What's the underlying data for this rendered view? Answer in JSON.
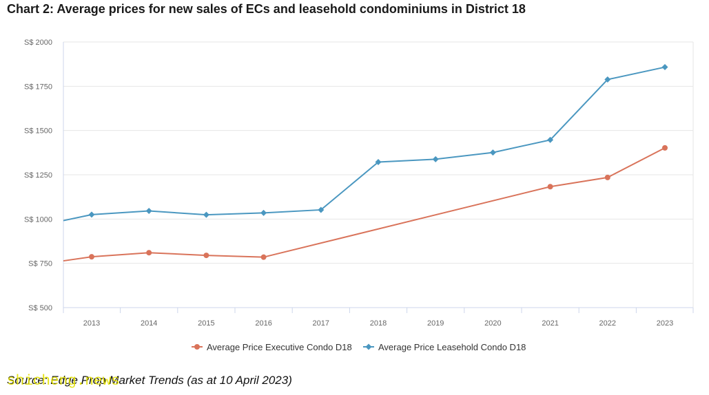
{
  "title": "Chart 2: Average prices for new sales of ECs and leasehold condominiums in District 18",
  "source": "Source: Edge Prop Market Trends (as at 10 April 2023)",
  "watermark": "shicheng.news",
  "chart_data": {
    "type": "line",
    "x": [
      "2013",
      "2014",
      "2015",
      "2016",
      "2017",
      "2018",
      "2019",
      "2020",
      "2021",
      "2022",
      "2023"
    ],
    "ylim": [
      500,
      2000
    ],
    "yticks": [
      500,
      750,
      1000,
      1250,
      1500,
      1750,
      2000
    ],
    "ytick_prefix": "S$ ",
    "grid": true,
    "legend_position": "bottom",
    "series": [
      {
        "name": "Average Price Executive Condo D18",
        "color": "#d9735a",
        "marker": "circle",
        "points": [
          {
            "x": "2013",
            "y": 787
          },
          {
            "x": "2014",
            "y": 810
          },
          {
            "x": "2015",
            "y": 795
          },
          {
            "x": "2016",
            "y": 785
          },
          {
            "x": "2021",
            "y": 1183
          },
          {
            "x": "2022",
            "y": 1235
          },
          {
            "x": "2023",
            "y": 1402
          }
        ]
      },
      {
        "name": "Average Price Leasehold Condo D18",
        "color": "#4a97c0",
        "marker": "diamond",
        "points": [
          {
            "x": "2013",
            "y": 1025
          },
          {
            "x": "2014",
            "y": 1046
          },
          {
            "x": "2015",
            "y": 1024
          },
          {
            "x": "2016",
            "y": 1035
          },
          {
            "x": "2017",
            "y": 1052
          },
          {
            "x": "2018",
            "y": 1322
          },
          {
            "x": "2019",
            "y": 1338
          },
          {
            "x": "2020",
            "y": 1376
          },
          {
            "x": "2021",
            "y": 1447
          },
          {
            "x": "2022",
            "y": 1788
          },
          {
            "x": "2023",
            "y": 1858
          }
        ]
      }
    ]
  }
}
